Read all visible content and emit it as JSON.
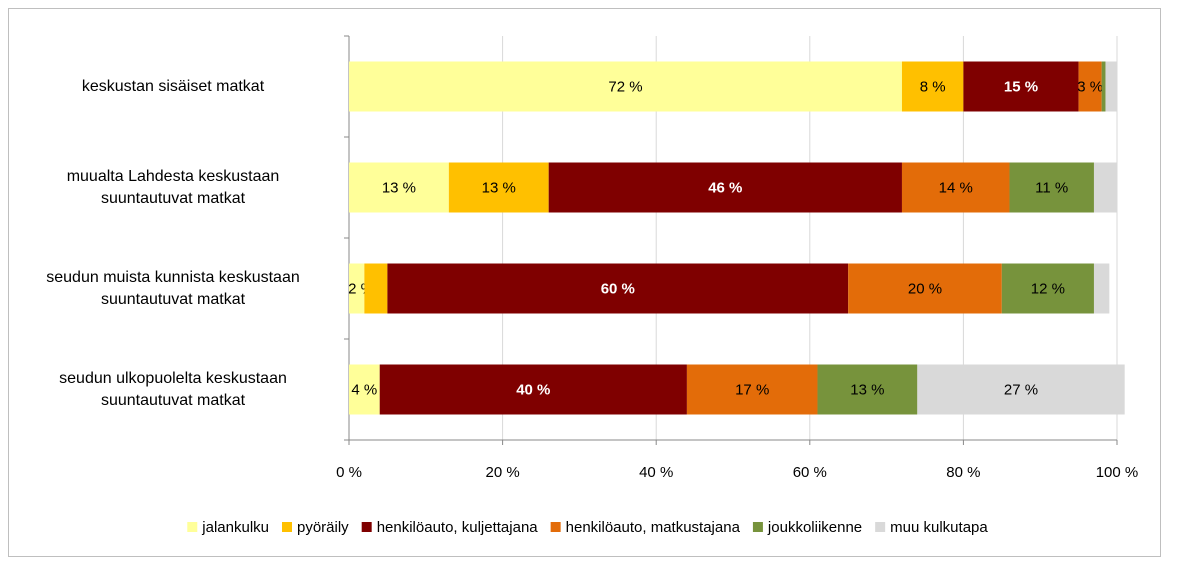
{
  "chart_data": {
    "type": "stacked-barh",
    "categories": [
      "keskustan sisäiset matkat",
      "muualta Lahdesta keskustaan\nsuuntautuvat matkat",
      "seudun muista kunnista keskustaan\nsuuntautuvat matkat",
      "seudun ulkopuolelta keskustaan\nsuuntautuvat matkat"
    ],
    "series": [
      {
        "name": "jalankulku",
        "color": "#ffff99",
        "values": [
          72,
          13,
          2,
          4
        ],
        "value_labels": [
          "72 %",
          "13 %",
          "2 %",
          "4 %"
        ]
      },
      {
        "name": "pyöräily",
        "color": "#ffc000",
        "values": [
          8,
          13,
          3,
          0
        ],
        "value_labels": [
          "8 %",
          "13 %",
          null,
          null
        ]
      },
      {
        "name": "henkilöauto, kuljettajana",
        "color": "#7f0000",
        "values": [
          15,
          46,
          60,
          40
        ],
        "value_labels": [
          "15 %",
          "46 %",
          "60 %",
          "40 %"
        ]
      },
      {
        "name": "henkilöauto, matkustajana",
        "color": "#e36c09",
        "values": [
          3,
          14,
          20,
          17
        ],
        "value_labels": [
          "3 %",
          "14 %",
          "20 %",
          "17 %"
        ]
      },
      {
        "name": "joukkoliikenne",
        "color": "#77933c",
        "values": [
          0.5,
          11,
          12,
          13
        ],
        "value_labels": [
          null,
          "11 %",
          "12 %",
          "13 %"
        ]
      },
      {
        "name": "muu kulkutapa",
        "color": "#d9d9d9",
        "values": [
          1.5,
          3,
          2,
          27
        ],
        "value_labels": [
          null,
          null,
          null,
          "27 %"
        ]
      }
    ],
    "xlim": [
      0,
      100
    ],
    "xticks": [
      {
        "value": 0,
        "label": "0 %"
      },
      {
        "value": 20,
        "label": "20 %"
      },
      {
        "value": 40,
        "label": "40 %"
      },
      {
        "value": 60,
        "label": "60 %"
      },
      {
        "value": 80,
        "label": "80 %"
      },
      {
        "value": 100,
        "label": "100 %"
      }
    ],
    "grid": true,
    "legend": "bottom"
  }
}
